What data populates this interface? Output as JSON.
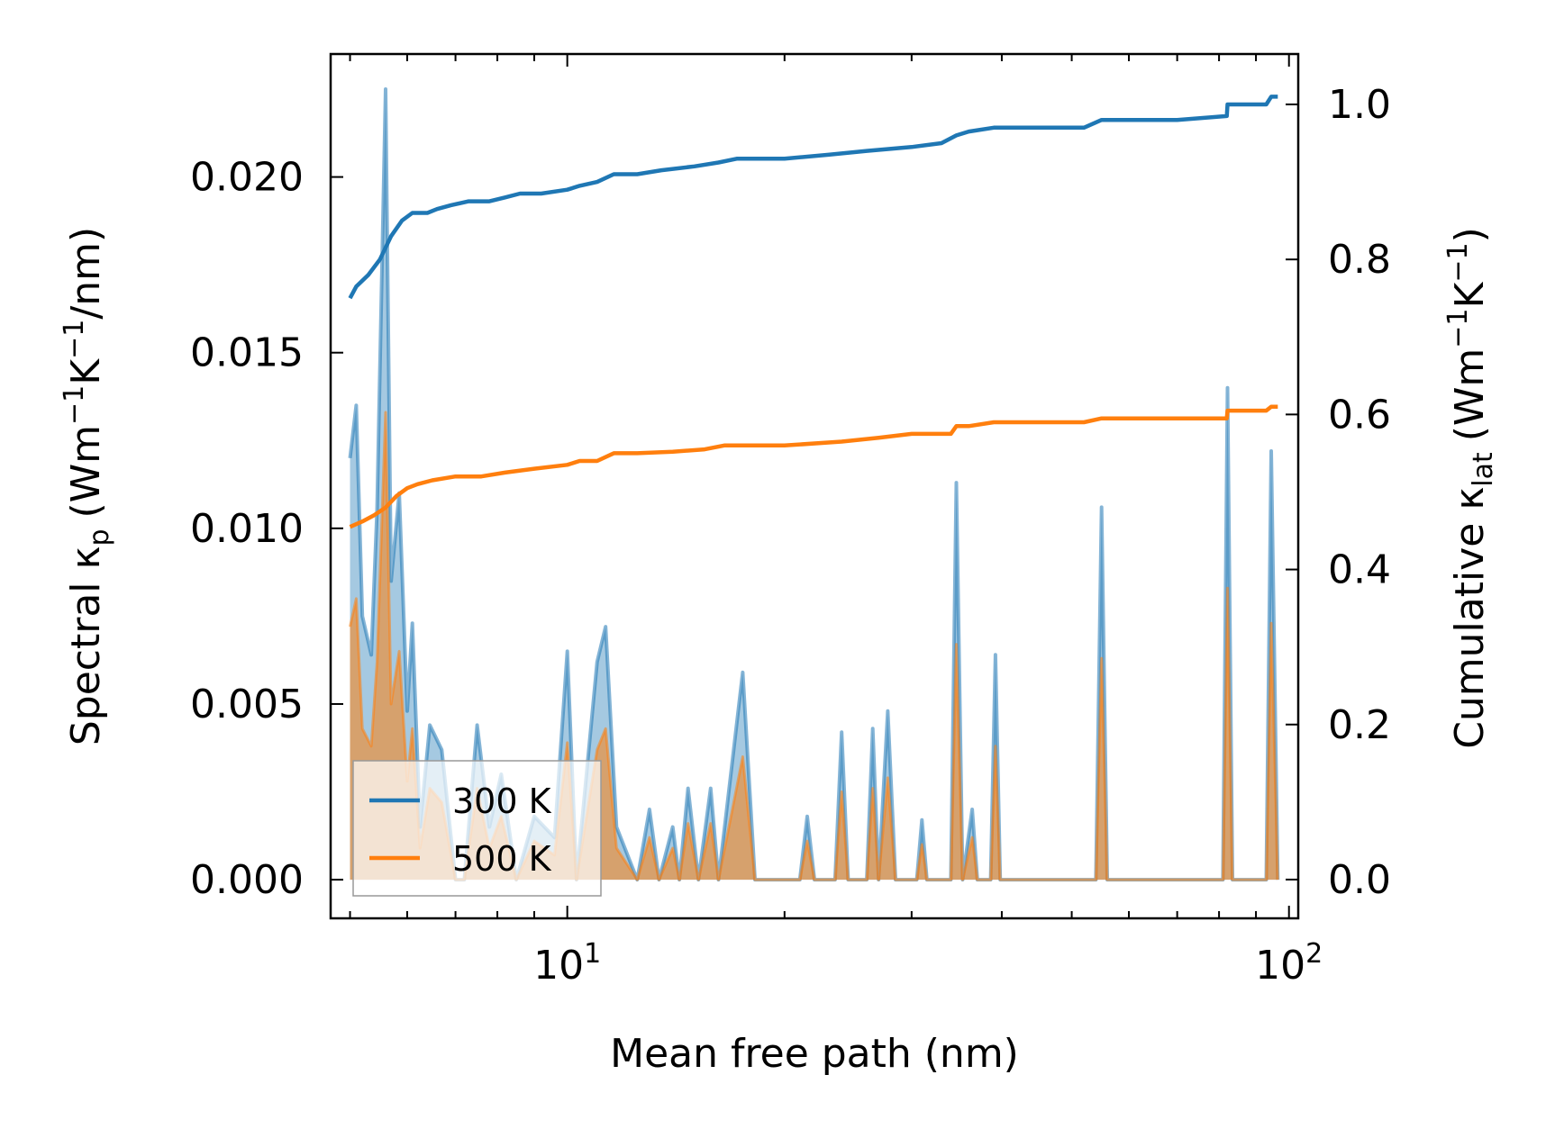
{
  "chart_data": {
    "type": "line",
    "xscale": "log",
    "xlim": [
      4.7,
      103
    ],
    "ylim_left": [
      -0.0011,
      0.0235
    ],
    "ylim_right": [
      -0.05,
      1.065
    ],
    "xlabel": "Mean free path (nm)",
    "ylabel_left": {
      "main": "Spectral κ",
      "sub": "p",
      "units": "(Wm",
      "exp1": "−1",
      "k": "K",
      "exp2": "−1",
      "tail": "/nm)"
    },
    "ylabel_right": {
      "main": "Cumulative κ",
      "sub": "lat",
      "units": "(Wm",
      "exp1": "−1",
      "k": "K",
      "exp2": "−1",
      "tail": ")"
    },
    "x_ticks": [
      {
        "value": 10,
        "base": "10",
        "exp": "1"
      },
      {
        "value": 100,
        "base": "10",
        "exp": "2"
      }
    ],
    "y_ticks_left": [
      {
        "value": 0.0,
        "label": "0.000"
      },
      {
        "value": 0.005,
        "label": "0.005"
      },
      {
        "value": 0.01,
        "label": "0.010"
      },
      {
        "value": 0.015,
        "label": "0.015"
      },
      {
        "value": 0.02,
        "label": "0.020"
      }
    ],
    "y_ticks_right": [
      {
        "value": 0.0,
        "label": "0.0"
      },
      {
        "value": 0.2,
        "label": "0.2"
      },
      {
        "value": 0.4,
        "label": "0.4"
      },
      {
        "value": 0.6,
        "label": "0.6"
      },
      {
        "value": 0.8,
        "label": "0.8"
      },
      {
        "value": 1.0,
        "label": "1.0"
      }
    ],
    "legend": {
      "position": "lower-left",
      "entries": [
        {
          "label": "300 K",
          "color": "#1f77b4"
        },
        {
          "label": "500 K",
          "color": "#ff7f0e"
        }
      ]
    },
    "series": [
      {
        "name": "300 K",
        "color": "#1f77b4",
        "spectral": [
          [
            5.0,
            0.012
          ],
          [
            5.1,
            0.0135
          ],
          [
            5.2,
            0.0075
          ],
          [
            5.35,
            0.0064
          ],
          [
            5.45,
            0.0105
          ],
          [
            5.6,
            0.0225
          ],
          [
            5.7,
            0.0085
          ],
          [
            5.85,
            0.011
          ],
          [
            6.0,
            0.0048
          ],
          [
            6.1,
            0.0073
          ],
          [
            6.25,
            0.0015
          ],
          [
            6.45,
            0.0044
          ],
          [
            6.7,
            0.0037
          ],
          [
            7.0,
            0.0
          ],
          [
            7.2,
            0.0
          ],
          [
            7.5,
            0.0044
          ],
          [
            7.8,
            0.0015
          ],
          [
            8.1,
            0.003
          ],
          [
            8.5,
            0.0
          ],
          [
            9.0,
            0.0018
          ],
          [
            9.6,
            0.0012
          ],
          [
            10.0,
            0.0065
          ],
          [
            10.3,
            0.0
          ],
          [
            11.0,
            0.0062
          ],
          [
            11.3,
            0.0072
          ],
          [
            11.7,
            0.0015
          ],
          [
            12.5,
            0.0
          ],
          [
            13.0,
            0.002
          ],
          [
            13.4,
            0.0
          ],
          [
            14.0,
            0.0015
          ],
          [
            14.3,
            0.0
          ],
          [
            14.7,
            0.0026
          ],
          [
            15.2,
            0.0
          ],
          [
            15.8,
            0.0026
          ],
          [
            16.2,
            0.0
          ],
          [
            17.5,
            0.0059
          ],
          [
            18.2,
            0.0
          ],
          [
            21.0,
            0.0
          ],
          [
            21.5,
            0.0018
          ],
          [
            22.0,
            0.0
          ],
          [
            23.5,
            0.0
          ],
          [
            24.0,
            0.0042
          ],
          [
            24.5,
            0.0
          ],
          [
            26.0,
            0.0
          ],
          [
            26.5,
            0.0043
          ],
          [
            27.0,
            0.0
          ],
          [
            27.8,
            0.0048
          ],
          [
            28.5,
            0.0
          ],
          [
            30.5,
            0.0
          ],
          [
            31.0,
            0.0017
          ],
          [
            31.5,
            0.0
          ],
          [
            34.0,
            0.0
          ],
          [
            34.6,
            0.0113
          ],
          [
            35.3,
            0.0
          ],
          [
            36.4,
            0.002
          ],
          [
            37.0,
            0.0
          ],
          [
            38.6,
            0.0
          ],
          [
            39.2,
            0.0064
          ],
          [
            39.8,
            0.0
          ],
          [
            54.0,
            0.0
          ],
          [
            55.0,
            0.0106
          ],
          [
            56.0,
            0.0
          ],
          [
            81.0,
            0.0
          ],
          [
            82.2,
            0.014
          ],
          [
            83.5,
            0.0
          ],
          [
            93.0,
            0.0
          ],
          [
            94.5,
            0.0122
          ],
          [
            96.5,
            0.0
          ]
        ],
        "cumulative": [
          [
            5.0,
            0.75
          ],
          [
            5.1,
            0.765
          ],
          [
            5.3,
            0.78
          ],
          [
            5.5,
            0.8
          ],
          [
            5.7,
            0.83
          ],
          [
            5.9,
            0.85
          ],
          [
            6.1,
            0.86
          ],
          [
            6.4,
            0.86
          ],
          [
            6.6,
            0.865
          ],
          [
            6.9,
            0.87
          ],
          [
            7.3,
            0.875
          ],
          [
            7.8,
            0.875
          ],
          [
            8.2,
            0.88
          ],
          [
            8.6,
            0.885
          ],
          [
            9.2,
            0.885
          ],
          [
            10.0,
            0.89
          ],
          [
            10.4,
            0.895
          ],
          [
            11.0,
            0.9
          ],
          [
            11.6,
            0.91
          ],
          [
            12.5,
            0.91
          ],
          [
            13.5,
            0.915
          ],
          [
            15.0,
            0.92
          ],
          [
            16.2,
            0.925
          ],
          [
            17.2,
            0.93
          ],
          [
            20.0,
            0.93
          ],
          [
            23.0,
            0.935
          ],
          [
            26.0,
            0.94
          ],
          [
            30.0,
            0.945
          ],
          [
            33.0,
            0.95
          ],
          [
            34.6,
            0.96
          ],
          [
            36.0,
            0.965
          ],
          [
            39.0,
            0.97
          ],
          [
            52.0,
            0.97
          ],
          [
            55.0,
            0.98
          ],
          [
            70.0,
            0.98
          ],
          [
            82.0,
            0.985
          ],
          [
            82.2,
            1.0
          ],
          [
            93.0,
            1.0
          ],
          [
            94.5,
            1.01
          ],
          [
            96.5,
            1.01
          ]
        ]
      },
      {
        "name": "500 K",
        "color": "#ff7f0e",
        "spectral": [
          [
            5.0,
            0.0072
          ],
          [
            5.1,
            0.008
          ],
          [
            5.2,
            0.0043
          ],
          [
            5.35,
            0.0038
          ],
          [
            5.45,
            0.0062
          ],
          [
            5.6,
            0.0133
          ],
          [
            5.7,
            0.005
          ],
          [
            5.85,
            0.0065
          ],
          [
            6.0,
            0.0028
          ],
          [
            6.1,
            0.0043
          ],
          [
            6.25,
            0.0009
          ],
          [
            6.45,
            0.0026
          ],
          [
            6.7,
            0.0022
          ],
          [
            7.0,
            0.0
          ],
          [
            7.2,
            0.0
          ],
          [
            7.5,
            0.0026
          ],
          [
            7.8,
            0.0009
          ],
          [
            8.1,
            0.0018
          ],
          [
            8.5,
            0.0
          ],
          [
            9.0,
            0.0011
          ],
          [
            9.6,
            0.0007
          ],
          [
            10.0,
            0.0039
          ],
          [
            10.3,
            0.0
          ],
          [
            11.0,
            0.0037
          ],
          [
            11.3,
            0.0043
          ],
          [
            11.7,
            0.0009
          ],
          [
            12.5,
            0.0
          ],
          [
            13.0,
            0.0012
          ],
          [
            13.4,
            0.0
          ],
          [
            14.0,
            0.0009
          ],
          [
            14.3,
            0.0
          ],
          [
            14.7,
            0.0016
          ],
          [
            15.2,
            0.0
          ],
          [
            15.8,
            0.0016
          ],
          [
            16.2,
            0.0
          ],
          [
            17.5,
            0.0035
          ],
          [
            18.2,
            0.0
          ],
          [
            21.0,
            0.0
          ],
          [
            21.5,
            0.0011
          ],
          [
            22.0,
            0.0
          ],
          [
            23.5,
            0.0
          ],
          [
            24.0,
            0.0025
          ],
          [
            24.5,
            0.0
          ],
          [
            26.0,
            0.0
          ],
          [
            26.5,
            0.0026
          ],
          [
            27.0,
            0.0
          ],
          [
            27.8,
            0.0029
          ],
          [
            28.5,
            0.0
          ],
          [
            30.5,
            0.0
          ],
          [
            31.0,
            0.001
          ],
          [
            31.5,
            0.0
          ],
          [
            34.0,
            0.0
          ],
          [
            34.6,
            0.0067
          ],
          [
            35.3,
            0.0
          ],
          [
            36.4,
            0.0012
          ],
          [
            37.0,
            0.0
          ],
          [
            38.6,
            0.0
          ],
          [
            39.2,
            0.0038
          ],
          [
            39.8,
            0.0
          ],
          [
            54.0,
            0.0
          ],
          [
            55.0,
            0.0063
          ],
          [
            56.0,
            0.0
          ],
          [
            81.0,
            0.0
          ],
          [
            82.2,
            0.0083
          ],
          [
            83.5,
            0.0
          ],
          [
            93.0,
            0.0
          ],
          [
            94.5,
            0.0073
          ],
          [
            96.5,
            0.0
          ]
        ],
        "cumulative": [
          [
            5.0,
            0.455
          ],
          [
            5.2,
            0.462
          ],
          [
            5.4,
            0.47
          ],
          [
            5.6,
            0.48
          ],
          [
            5.8,
            0.495
          ],
          [
            6.0,
            0.505
          ],
          [
            6.2,
            0.51
          ],
          [
            6.5,
            0.515
          ],
          [
            7.0,
            0.52
          ],
          [
            7.6,
            0.52
          ],
          [
            8.2,
            0.525
          ],
          [
            9.0,
            0.53
          ],
          [
            10.0,
            0.535
          ],
          [
            10.4,
            0.54
          ],
          [
            11.0,
            0.54
          ],
          [
            11.6,
            0.55
          ],
          [
            12.5,
            0.55
          ],
          [
            14.0,
            0.552
          ],
          [
            15.5,
            0.555
          ],
          [
            16.5,
            0.56
          ],
          [
            20.0,
            0.56
          ],
          [
            24.0,
            0.565
          ],
          [
            27.0,
            0.57
          ],
          [
            30.0,
            0.575
          ],
          [
            34.0,
            0.575
          ],
          [
            34.6,
            0.585
          ],
          [
            36.0,
            0.585
          ],
          [
            39.0,
            0.59
          ],
          [
            52.0,
            0.59
          ],
          [
            55.0,
            0.595
          ],
          [
            82.0,
            0.595
          ],
          [
            82.2,
            0.605
          ],
          [
            93.0,
            0.605
          ],
          [
            94.5,
            0.61
          ],
          [
            96.5,
            0.61
          ]
        ]
      }
    ]
  }
}
